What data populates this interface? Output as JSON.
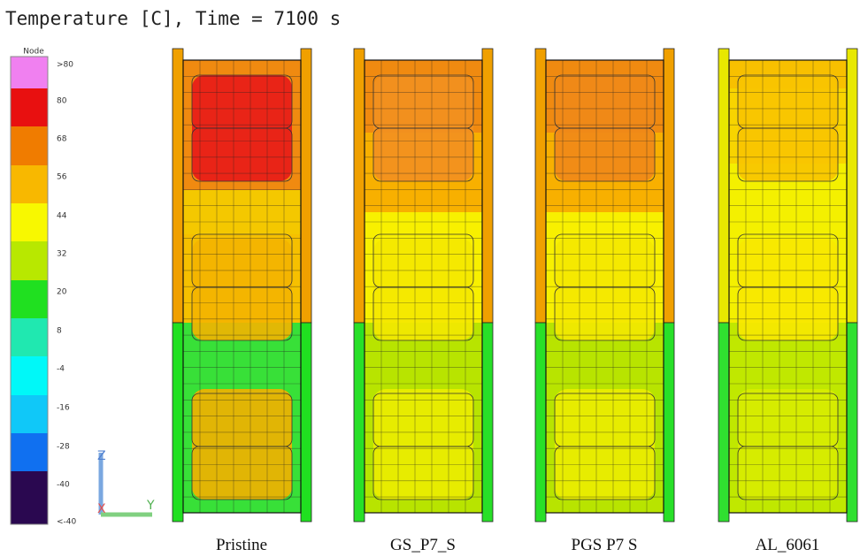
{
  "header": {
    "title": "Temperature [C], Time = 7100 s"
  },
  "legend": {
    "heading": "Node",
    "labels": [
      ">80",
      "80",
      "68",
      "56",
      "44",
      "32",
      "20",
      "8",
      "-4",
      "-16",
      "-28",
      "-40",
      "<-40"
    ]
  },
  "triad": {
    "z": "Z",
    "x": "X",
    "y": "Y"
  },
  "panels": [
    {
      "label": "Pristine"
    },
    {
      "label": "GS_P7_S"
    },
    {
      "label": "PGS P7 S"
    },
    {
      "label": "AL_6061"
    }
  ]
}
